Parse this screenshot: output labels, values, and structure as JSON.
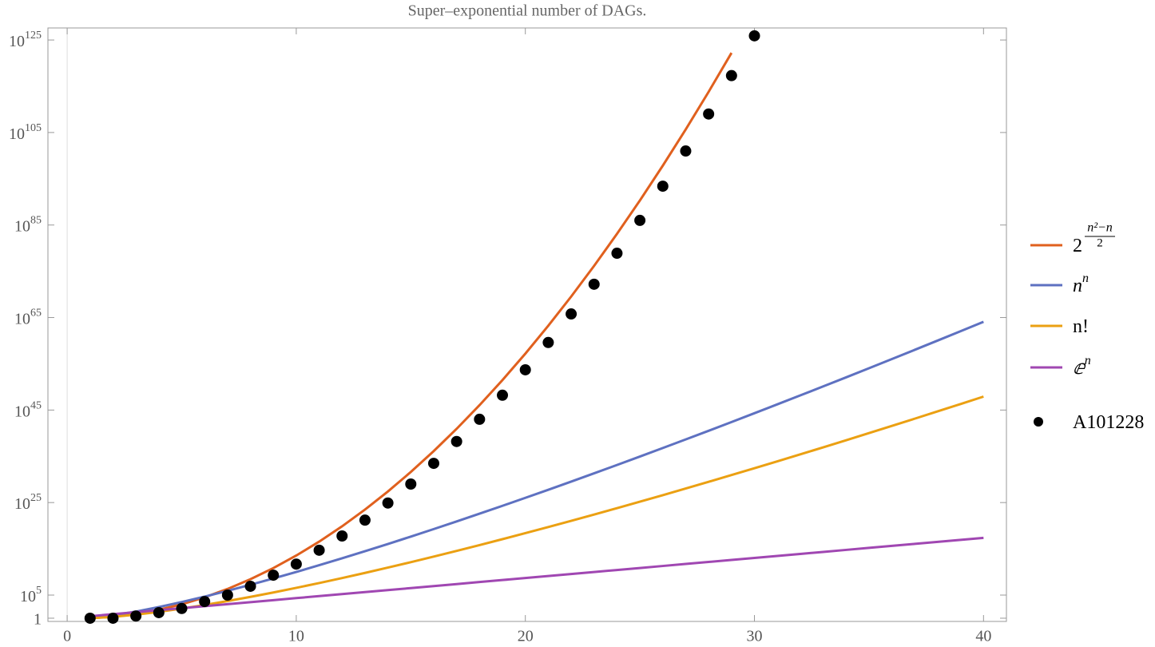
{
  "chart_data": {
    "type": "line",
    "title": "Super–exponential number of DAGs.",
    "xlim": [
      -0.84,
      41
    ],
    "xticks": [
      0,
      10,
      20,
      30,
      40
    ],
    "ylim": [
      0.2,
      4e+127
    ],
    "ylog": true,
    "yticks": [
      1,
      {
        "value": 100000.0,
        "label": "10",
        "exponent": "5"
      },
      {
        "value": 1e+25,
        "label": "10",
        "exponent": "25"
      },
      {
        "value": 1e+45,
        "label": "10",
        "exponent": "45"
      },
      {
        "value": 1e+65,
        "label": "10",
        "exponent": "65"
      },
      {
        "value": 1e+85,
        "label": "10",
        "exponent": "85"
      },
      {
        "value": 1e+105,
        "label": "10",
        "exponent": "105"
      },
      {
        "value": 1e+125,
        "label": "10",
        "exponent": "125"
      }
    ],
    "legend": "right",
    "series": [
      {
        "type": "line",
        "name": "2",
        "exponent_numerator": "n²−n",
        "exponent_denominator": "2",
        "color": "#e0601e",
        "x": [
          1,
          2,
          3,
          4,
          5,
          6,
          7,
          8,
          9,
          10,
          11,
          12,
          13,
          14,
          15,
          16,
          17,
          18,
          19,
          20,
          21,
          22,
          23,
          24,
          25,
          26,
          27,
          28,
          29
        ],
        "values": [
          1,
          2,
          8,
          64,
          1024,
          32768,
          2097152,
          268435456,
          68720000000.0,
          35180000000000.0,
          3.603e+16,
          7.379e+19,
          3.022e+23,
          2.476e+27,
          4.056e+31,
          1.329e+36,
          8.711e+40,
          1.142e+46,
          2.993e+51,
          1.569e+57,
          1.646e+63,
          3.451e+69,
          1.447e+76,
          1.214e+83,
          2.037e+90,
          6.835e+97,
          4.587e+105,
          6.156e+113,
          1.652e+122
        ]
      },
      {
        "type": "line",
        "name": "n",
        "exponent": "n",
        "color": "#5e71c1",
        "x": [
          1,
          2,
          3,
          4,
          5,
          6,
          7,
          8,
          9,
          10,
          11,
          12,
          13,
          14,
          15,
          16,
          17,
          18,
          19,
          20,
          21,
          22,
          23,
          24,
          25,
          26,
          27,
          28,
          29,
          30,
          31,
          32,
          33,
          34,
          35,
          36,
          37,
          38,
          39,
          40
        ],
        "values": [
          1,
          4,
          27,
          256,
          3125,
          46656,
          823543,
          16777216,
          387420489,
          10000000000.0,
          285300000000.0,
          8916000000000.0,
          302900000000000.0,
          1.111e+16,
          4.379e+17,
          1.845e+19,
          8.272e+20,
          3.934e+22,
          1.978e+24,
          1.049e+26,
          5.842e+27,
          3.414e+29,
          2.088e+31,
          1.334e+33,
          8.882e+34,
          6.156e+36,
          4.434e+38,
          3.312e+40,
          2.566e+42,
          2.059e+44,
          1.712e+46,
          1.461e+48,
          1.292e+50,
          1.161e+52,
          1.087e+54,
          1.06e+56,
          1.05e+58,
          1.07e+60,
          1.13e+62,
          1.209e+64
        ]
      },
      {
        "type": "line",
        "name": "n!",
        "color": "#eba012",
        "x": [
          1,
          2,
          3,
          4,
          5,
          6,
          7,
          8,
          9,
          10,
          11,
          12,
          13,
          14,
          15,
          16,
          17,
          18,
          19,
          20,
          21,
          22,
          23,
          24,
          25,
          26,
          27,
          28,
          29,
          30,
          31,
          32,
          33,
          34,
          35,
          36,
          37,
          38,
          39,
          40
        ],
        "values": [
          1,
          2,
          6,
          24,
          120,
          720,
          5040,
          40320,
          362880,
          3628800,
          39916800,
          479001600,
          6227020800,
          87180000000.0,
          1308000000000.0,
          20920000000000.0,
          355700000000000.0,
          6402000000000000.0,
          1.216e+17,
          2.433e+18,
          5.109e+19,
          1.124e+21,
          2.585e+22,
          6.204e+23,
          1.551e+25,
          4.033e+26,
          1.089e+28,
          3.049e+29,
          8.842e+30,
          2.653e+32,
          8.223e+33,
          2.631e+35,
          8.683e+36,
          2.952e+38,
          1.033e+40,
          3.72e+41,
          1.376e+43,
          5.23e+44,
          2.04e+46,
          8.159e+47
        ]
      },
      {
        "type": "line",
        "name": "ⅇ",
        "exponent": "n",
        "color": "#a047b2",
        "x": [
          1,
          2,
          3,
          4,
          5,
          6,
          7,
          8,
          9,
          10,
          11,
          12,
          13,
          14,
          15,
          16,
          17,
          18,
          19,
          20,
          21,
          22,
          23,
          24,
          25,
          26,
          27,
          28,
          29,
          30,
          31,
          32,
          33,
          34,
          35,
          36,
          37,
          38,
          39,
          40
        ],
        "values": [
          2.718,
          7.389,
          20.09,
          54.6,
          148.4,
          403.4,
          1097,
          2981,
          8103,
          22026,
          59874,
          162755,
          442413,
          1202600.0,
          3269000.0,
          8886000.0,
          24155000.0,
          65660000.0,
          178500000.0,
          485200000.0,
          1319000000.0,
          3585000000.0,
          9745000000.0,
          26490000000.0,
          72000000000.0,
          195700000000.0,
          532000000000.0,
          1446000000000.0,
          3931000000000.0,
          10690000000000.0,
          29050000000000.0,
          78960000000000.0,
          214600000000000.0,
          583500000000000.0,
          1586000000000000.0,
          4311000000000000.0,
          1.172e+16,
          3.186e+16,
          8.659e+16,
          2.354e+17
        ]
      },
      {
        "type": "scatter",
        "name": "A101228",
        "color": "#000000",
        "x": [
          1,
          2,
          3,
          4,
          5,
          6,
          7,
          8,
          9,
          10,
          11,
          12,
          13,
          14,
          15,
          16,
          17,
          18,
          19,
          20,
          21,
          22,
          23,
          24,
          25,
          26,
          27,
          28,
          29,
          30
        ],
        "values": [
          1,
          1,
          3,
          16,
          126,
          4000,
          100000.0,
          8000000.0,
          2000000000.0,
          500000000000.0,
          500000000000000.0,
          6e+17,
          1.6e+21,
          8e+24,
          1e+29,
          3e+33,
          1.6e+38,
          1e+43,
          1.6e+48,
          5e+53,
          4e+59,
          6e+65,
          1.6e+72,
          8e+78,
          1e+86,
          2.5e+93,
          1e+101,
          1e+109,
          2e+117,
          8e+125
        ]
      }
    ]
  }
}
